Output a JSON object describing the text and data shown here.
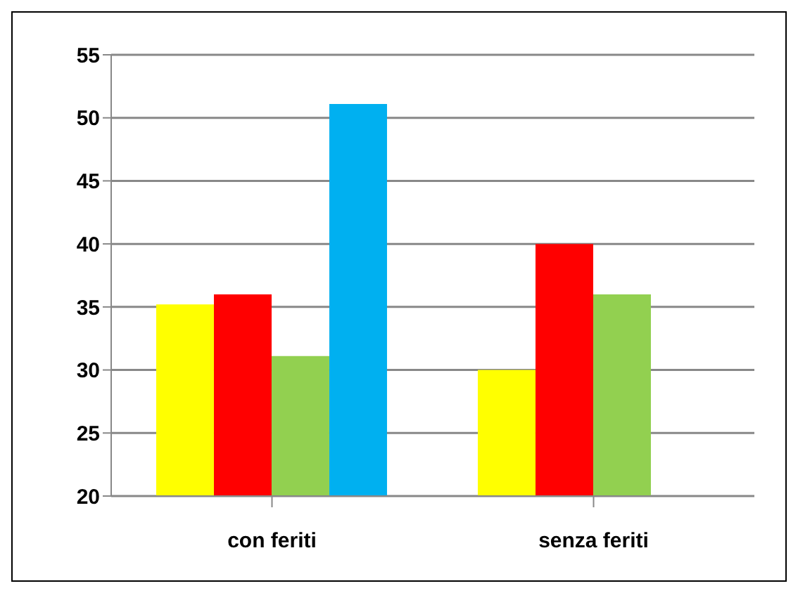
{
  "chart_data": {
    "type": "bar",
    "categories": [
      "con feriti",
      "senza feriti"
    ],
    "series": [
      {
        "color": "#ffff00",
        "values": [
          35.2,
          30
        ]
      },
      {
        "color": "#ff0000",
        "values": [
          36,
          40
        ]
      },
      {
        "color": "#92d050",
        "values": [
          31.1,
          36
        ]
      },
      {
        "color": "#00b0f0",
        "values": [
          51.1,
          null
        ]
      }
    ],
    "ylim": [
      20,
      55
    ],
    "yticks": [
      20,
      25,
      30,
      35,
      40,
      45,
      50,
      55
    ],
    "grid": "y",
    "legend": false
  }
}
